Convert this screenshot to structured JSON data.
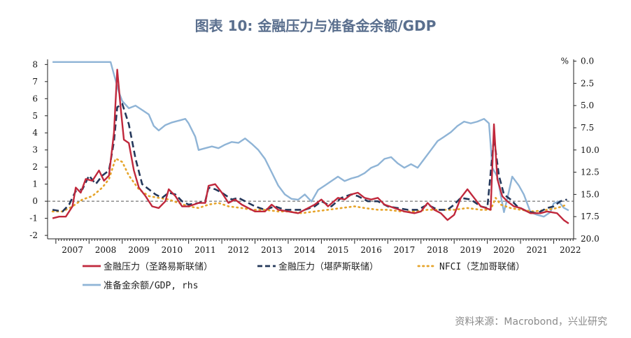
{
  "title": "图表 10: 金融压力与准备金余额/GDP",
  "source": "资料来源：Macrobond，兴业研究",
  "chart_data": {
    "type": "line",
    "x_ticks": [
      "2007",
      "2008",
      "2009",
      "2010",
      "2011",
      "2012",
      "2013",
      "2014",
      "2015",
      "2016",
      "2017",
      "2018",
      "2019",
      "2020",
      "2021",
      "2022"
    ],
    "xlim": [
      2006.75,
      2022.6
    ],
    "ylim_left": [
      -2.2,
      8.3
    ],
    "ylim_right": [
      20.0,
      -0.2
    ],
    "left_ticks": [
      8,
      7,
      6,
      5,
      4,
      3,
      2,
      1,
      0,
      -1,
      -2
    ],
    "right_ticks": [
      "0.0",
      "2.5",
      "5.0",
      "7.5",
      "10.0",
      "12.5",
      "15.0",
      "17.5",
      "20.0"
    ],
    "right_unit": "%",
    "zero_line": 0,
    "series": [
      {
        "name": "金融压力（圣路易斯联储）",
        "axis": "left",
        "color": "#c0283c",
        "style": "solid",
        "points": [
          [
            2006.9,
            -1.0
          ],
          [
            2007.1,
            -0.9
          ],
          [
            2007.3,
            -0.9
          ],
          [
            2007.5,
            -0.3
          ],
          [
            2007.6,
            0.8
          ],
          [
            2007.75,
            0.5
          ],
          [
            2007.9,
            1.3
          ],
          [
            2008.1,
            1.2
          ],
          [
            2008.3,
            1.8
          ],
          [
            2008.45,
            1.2
          ],
          [
            2008.6,
            1.5
          ],
          [
            2008.75,
            4.0
          ],
          [
            2008.85,
            7.7
          ],
          [
            2008.95,
            5.5
          ],
          [
            2009.05,
            3.6
          ],
          [
            2009.2,
            3.4
          ],
          [
            2009.35,
            1.8
          ],
          [
            2009.5,
            0.8
          ],
          [
            2009.7,
            0.3
          ],
          [
            2009.9,
            -0.3
          ],
          [
            2010.1,
            -0.4
          ],
          [
            2010.3,
            0.0
          ],
          [
            2010.4,
            0.7
          ],
          [
            2010.6,
            0.3
          ],
          [
            2010.8,
            -0.3
          ],
          [
            2011.0,
            -0.3
          ],
          [
            2011.3,
            -0.1
          ],
          [
            2011.5,
            -0.1
          ],
          [
            2011.6,
            0.9
          ],
          [
            2011.8,
            1.0
          ],
          [
            2012.0,
            0.5
          ],
          [
            2012.2,
            -0.1
          ],
          [
            2012.4,
            0.1
          ],
          [
            2012.6,
            -0.2
          ],
          [
            2012.8,
            -0.4
          ],
          [
            2013.0,
            -0.6
          ],
          [
            2013.3,
            -0.6
          ],
          [
            2013.5,
            -0.2
          ],
          [
            2013.7,
            -0.5
          ],
          [
            2014.0,
            -0.6
          ],
          [
            2014.3,
            -0.7
          ],
          [
            2014.6,
            -0.4
          ],
          [
            2014.8,
            -0.2
          ],
          [
            2015.0,
            0.1
          ],
          [
            2015.2,
            -0.3
          ],
          [
            2015.5,
            0.2
          ],
          [
            2015.7,
            0.1
          ],
          [
            2015.9,
            0.4
          ],
          [
            2016.1,
            0.5
          ],
          [
            2016.3,
            0.2
          ],
          [
            2016.5,
            0.1
          ],
          [
            2016.7,
            0.2
          ],
          [
            2016.9,
            -0.2
          ],
          [
            2017.2,
            -0.4
          ],
          [
            2017.5,
            -0.6
          ],
          [
            2017.8,
            -0.7
          ],
          [
            2018.0,
            -0.6
          ],
          [
            2018.2,
            -0.1
          ],
          [
            2018.4,
            -0.5
          ],
          [
            2018.6,
            -0.7
          ],
          [
            2018.8,
            -1.1
          ],
          [
            2019.0,
            -0.8
          ],
          [
            2019.2,
            0.2
          ],
          [
            2019.4,
            0.7
          ],
          [
            2019.6,
            0.2
          ],
          [
            2019.8,
            -0.3
          ],
          [
            2019.95,
            -0.4
          ],
          [
            2020.1,
            -0.5
          ],
          [
            2020.2,
            4.5
          ],
          [
            2020.3,
            1.3
          ],
          [
            2020.45,
            0.3
          ],
          [
            2020.6,
            0.0
          ],
          [
            2020.8,
            -0.3
          ],
          [
            2021.0,
            -0.4
          ],
          [
            2021.3,
            -0.7
          ],
          [
            2021.6,
            -0.7
          ],
          [
            2021.8,
            -0.6
          ],
          [
            2022.1,
            -0.7
          ],
          [
            2022.3,
            -1.1
          ],
          [
            2022.45,
            -1.3
          ]
        ]
      },
      {
        "name": "金融压力（堪萨斯联储）",
        "axis": "left",
        "color": "#24375a",
        "style": "dashed",
        "points": [
          [
            2006.9,
            -0.5
          ],
          [
            2007.2,
            -0.6
          ],
          [
            2007.4,
            -0.2
          ],
          [
            2007.6,
            0.6
          ],
          [
            2007.8,
            0.7
          ],
          [
            2008.0,
            1.5
          ],
          [
            2008.2,
            1.0
          ],
          [
            2008.4,
            1.5
          ],
          [
            2008.6,
            1.8
          ],
          [
            2008.75,
            3.5
          ],
          [
            2008.85,
            5.5
          ],
          [
            2009.0,
            5.7
          ],
          [
            2009.2,
            4.5
          ],
          [
            2009.4,
            2.5
          ],
          [
            2009.6,
            1.0
          ],
          [
            2009.8,
            0.7
          ],
          [
            2010.0,
            0.4
          ],
          [
            2010.2,
            0.2
          ],
          [
            2010.4,
            0.5
          ],
          [
            2010.6,
            0.4
          ],
          [
            2010.8,
            0.0
          ],
          [
            2011.0,
            -0.2
          ],
          [
            2011.3,
            -0.1
          ],
          [
            2011.5,
            0.0
          ],
          [
            2011.6,
            0.8
          ],
          [
            2011.8,
            0.7
          ],
          [
            2012.0,
            0.5
          ],
          [
            2012.3,
            0.1
          ],
          [
            2012.5,
            0.2
          ],
          [
            2012.8,
            -0.1
          ],
          [
            2013.0,
            -0.3
          ],
          [
            2013.3,
            -0.5
          ],
          [
            2013.6,
            -0.3
          ],
          [
            2013.9,
            -0.5
          ],
          [
            2014.2,
            -0.5
          ],
          [
            2014.5,
            -0.5
          ],
          [
            2014.8,
            -0.3
          ],
          [
            2015.0,
            0.0
          ],
          [
            2015.3,
            -0.3
          ],
          [
            2015.6,
            0.2
          ],
          [
            2015.9,
            0.4
          ],
          [
            2016.1,
            0.3
          ],
          [
            2016.4,
            0.0
          ],
          [
            2016.7,
            0.0
          ],
          [
            2017.0,
            -0.3
          ],
          [
            2017.3,
            -0.4
          ],
          [
            2017.6,
            -0.5
          ],
          [
            2017.9,
            -0.5
          ],
          [
            2018.2,
            -0.2
          ],
          [
            2018.5,
            -0.5
          ],
          [
            2018.8,
            -0.5
          ],
          [
            2019.0,
            -0.2
          ],
          [
            2019.2,
            0.2
          ],
          [
            2019.5,
            0.1
          ],
          [
            2019.8,
            -0.3
          ],
          [
            2020.0,
            -0.4
          ],
          [
            2020.2,
            3.7
          ],
          [
            2020.35,
            1.5
          ],
          [
            2020.5,
            0.4
          ],
          [
            2020.7,
            0.1
          ],
          [
            2020.9,
            -0.3
          ],
          [
            2021.2,
            -0.6
          ],
          [
            2021.5,
            -0.7
          ],
          [
            2021.8,
            -0.4
          ],
          [
            2022.0,
            -0.3
          ],
          [
            2022.2,
            0.0
          ],
          [
            2022.4,
            0.1
          ]
        ]
      },
      {
        "name": "NFCI（芝加哥联储）",
        "axis": "left",
        "color": "#e6a42a",
        "style": "dotted",
        "points": [
          [
            2006.9,
            -0.6
          ],
          [
            2007.2,
            -0.6
          ],
          [
            2007.5,
            -0.3
          ],
          [
            2007.8,
            0.1
          ],
          [
            2008.1,
            0.3
          ],
          [
            2008.4,
            0.8
          ],
          [
            2008.6,
            1.3
          ],
          [
            2008.8,
            2.5
          ],
          [
            2009.0,
            2.3
          ],
          [
            2009.2,
            1.5
          ],
          [
            2009.5,
            0.7
          ],
          [
            2009.8,
            0.3
          ],
          [
            2010.1,
            0.2
          ],
          [
            2010.4,
            0.1
          ],
          [
            2010.7,
            -0.1
          ],
          [
            2011.0,
            -0.3
          ],
          [
            2011.3,
            -0.4
          ],
          [
            2011.6,
            -0.2
          ],
          [
            2011.9,
            -0.1
          ],
          [
            2012.2,
            -0.3
          ],
          [
            2012.6,
            -0.4
          ],
          [
            2012.9,
            -0.5
          ],
          [
            2013.3,
            -0.5
          ],
          [
            2013.7,
            -0.6
          ],
          [
            2014.0,
            -0.6
          ],
          [
            2014.4,
            -0.7
          ],
          [
            2014.8,
            -0.6
          ],
          [
            2015.2,
            -0.5
          ],
          [
            2015.6,
            -0.4
          ],
          [
            2016.0,
            -0.3
          ],
          [
            2016.3,
            -0.4
          ],
          [
            2016.7,
            -0.5
          ],
          [
            2017.0,
            -0.5
          ],
          [
            2017.4,
            -0.6
          ],
          [
            2017.8,
            -0.6
          ],
          [
            2018.2,
            -0.5
          ],
          [
            2018.6,
            -0.5
          ],
          [
            2019.0,
            -0.5
          ],
          [
            2019.4,
            -0.4
          ],
          [
            2019.8,
            -0.5
          ],
          [
            2020.1,
            -0.5
          ],
          [
            2020.25,
            0.2
          ],
          [
            2020.4,
            -0.2
          ],
          [
            2020.7,
            -0.4
          ],
          [
            2021.0,
            -0.5
          ],
          [
            2021.4,
            -0.6
          ],
          [
            2021.8,
            -0.5
          ],
          [
            2022.1,
            -0.4
          ],
          [
            2022.4,
            -0.2
          ]
        ]
      },
      {
        "name": "准备金余额/GDP, rhs",
        "axis": "right",
        "color": "#8fb4d6",
        "style": "solid",
        "points": [
          [
            2006.9,
            0.1
          ],
          [
            2007.5,
            0.1
          ],
          [
            2008.0,
            0.1
          ],
          [
            2008.5,
            0.1
          ],
          [
            2008.65,
            0.1
          ],
          [
            2008.75,
            1.5
          ],
          [
            2008.9,
            3.5
          ],
          [
            2009.0,
            4.5
          ],
          [
            2009.2,
            5.3
          ],
          [
            2009.4,
            5.0
          ],
          [
            2009.6,
            5.5
          ],
          [
            2009.8,
            6.0
          ],
          [
            2009.95,
            7.3
          ],
          [
            2010.1,
            7.8
          ],
          [
            2010.3,
            7.2
          ],
          [
            2010.5,
            6.9
          ],
          [
            2010.7,
            6.7
          ],
          [
            2010.9,
            6.5
          ],
          [
            2011.0,
            7.0
          ],
          [
            2011.2,
            8.5
          ],
          [
            2011.3,
            10.0
          ],
          [
            2011.5,
            9.8
          ],
          [
            2011.7,
            9.6
          ],
          [
            2011.9,
            9.8
          ],
          [
            2012.1,
            9.4
          ],
          [
            2012.3,
            9.1
          ],
          [
            2012.5,
            9.2
          ],
          [
            2012.7,
            8.7
          ],
          [
            2012.9,
            9.3
          ],
          [
            2013.1,
            10.0
          ],
          [
            2013.3,
            11.0
          ],
          [
            2013.5,
            12.5
          ],
          [
            2013.7,
            14.0
          ],
          [
            2013.9,
            15.0
          ],
          [
            2014.1,
            15.5
          ],
          [
            2014.3,
            15.6
          ],
          [
            2014.5,
            15.0
          ],
          [
            2014.7,
            15.8
          ],
          [
            2014.9,
            14.5
          ],
          [
            2015.1,
            14.0
          ],
          [
            2015.3,
            13.5
          ],
          [
            2015.5,
            13.0
          ],
          [
            2015.7,
            13.5
          ],
          [
            2015.9,
            13.2
          ],
          [
            2016.1,
            13.0
          ],
          [
            2016.3,
            12.6
          ],
          [
            2016.5,
            12.0
          ],
          [
            2016.7,
            11.7
          ],
          [
            2016.9,
            11.0
          ],
          [
            2017.1,
            10.8
          ],
          [
            2017.3,
            11.5
          ],
          [
            2017.5,
            12.0
          ],
          [
            2017.7,
            11.6
          ],
          [
            2017.9,
            12.0
          ],
          [
            2018.1,
            11.0
          ],
          [
            2018.3,
            10.0
          ],
          [
            2018.5,
            9.0
          ],
          [
            2018.7,
            8.5
          ],
          [
            2018.9,
            8.0
          ],
          [
            2019.1,
            7.3
          ],
          [
            2019.3,
            6.8
          ],
          [
            2019.5,
            7.0
          ],
          [
            2019.7,
            6.8
          ],
          [
            2019.9,
            6.5
          ],
          [
            2020.05,
            7.0
          ],
          [
            2020.15,
            12.0
          ],
          [
            2020.3,
            13.0
          ],
          [
            2020.4,
            15.0
          ],
          [
            2020.5,
            17.0
          ],
          [
            2020.6,
            15.5
          ],
          [
            2020.75,
            13.0
          ],
          [
            2020.95,
            14.0
          ],
          [
            2021.1,
            15.0
          ],
          [
            2021.3,
            17.0
          ],
          [
            2021.5,
            17.3
          ],
          [
            2021.7,
            17.5
          ],
          [
            2021.9,
            17.0
          ],
          [
            2022.0,
            16.0
          ],
          [
            2022.15,
            15.8
          ],
          [
            2022.3,
            16.5
          ],
          [
            2022.45,
            16.8
          ]
        ]
      }
    ]
  }
}
